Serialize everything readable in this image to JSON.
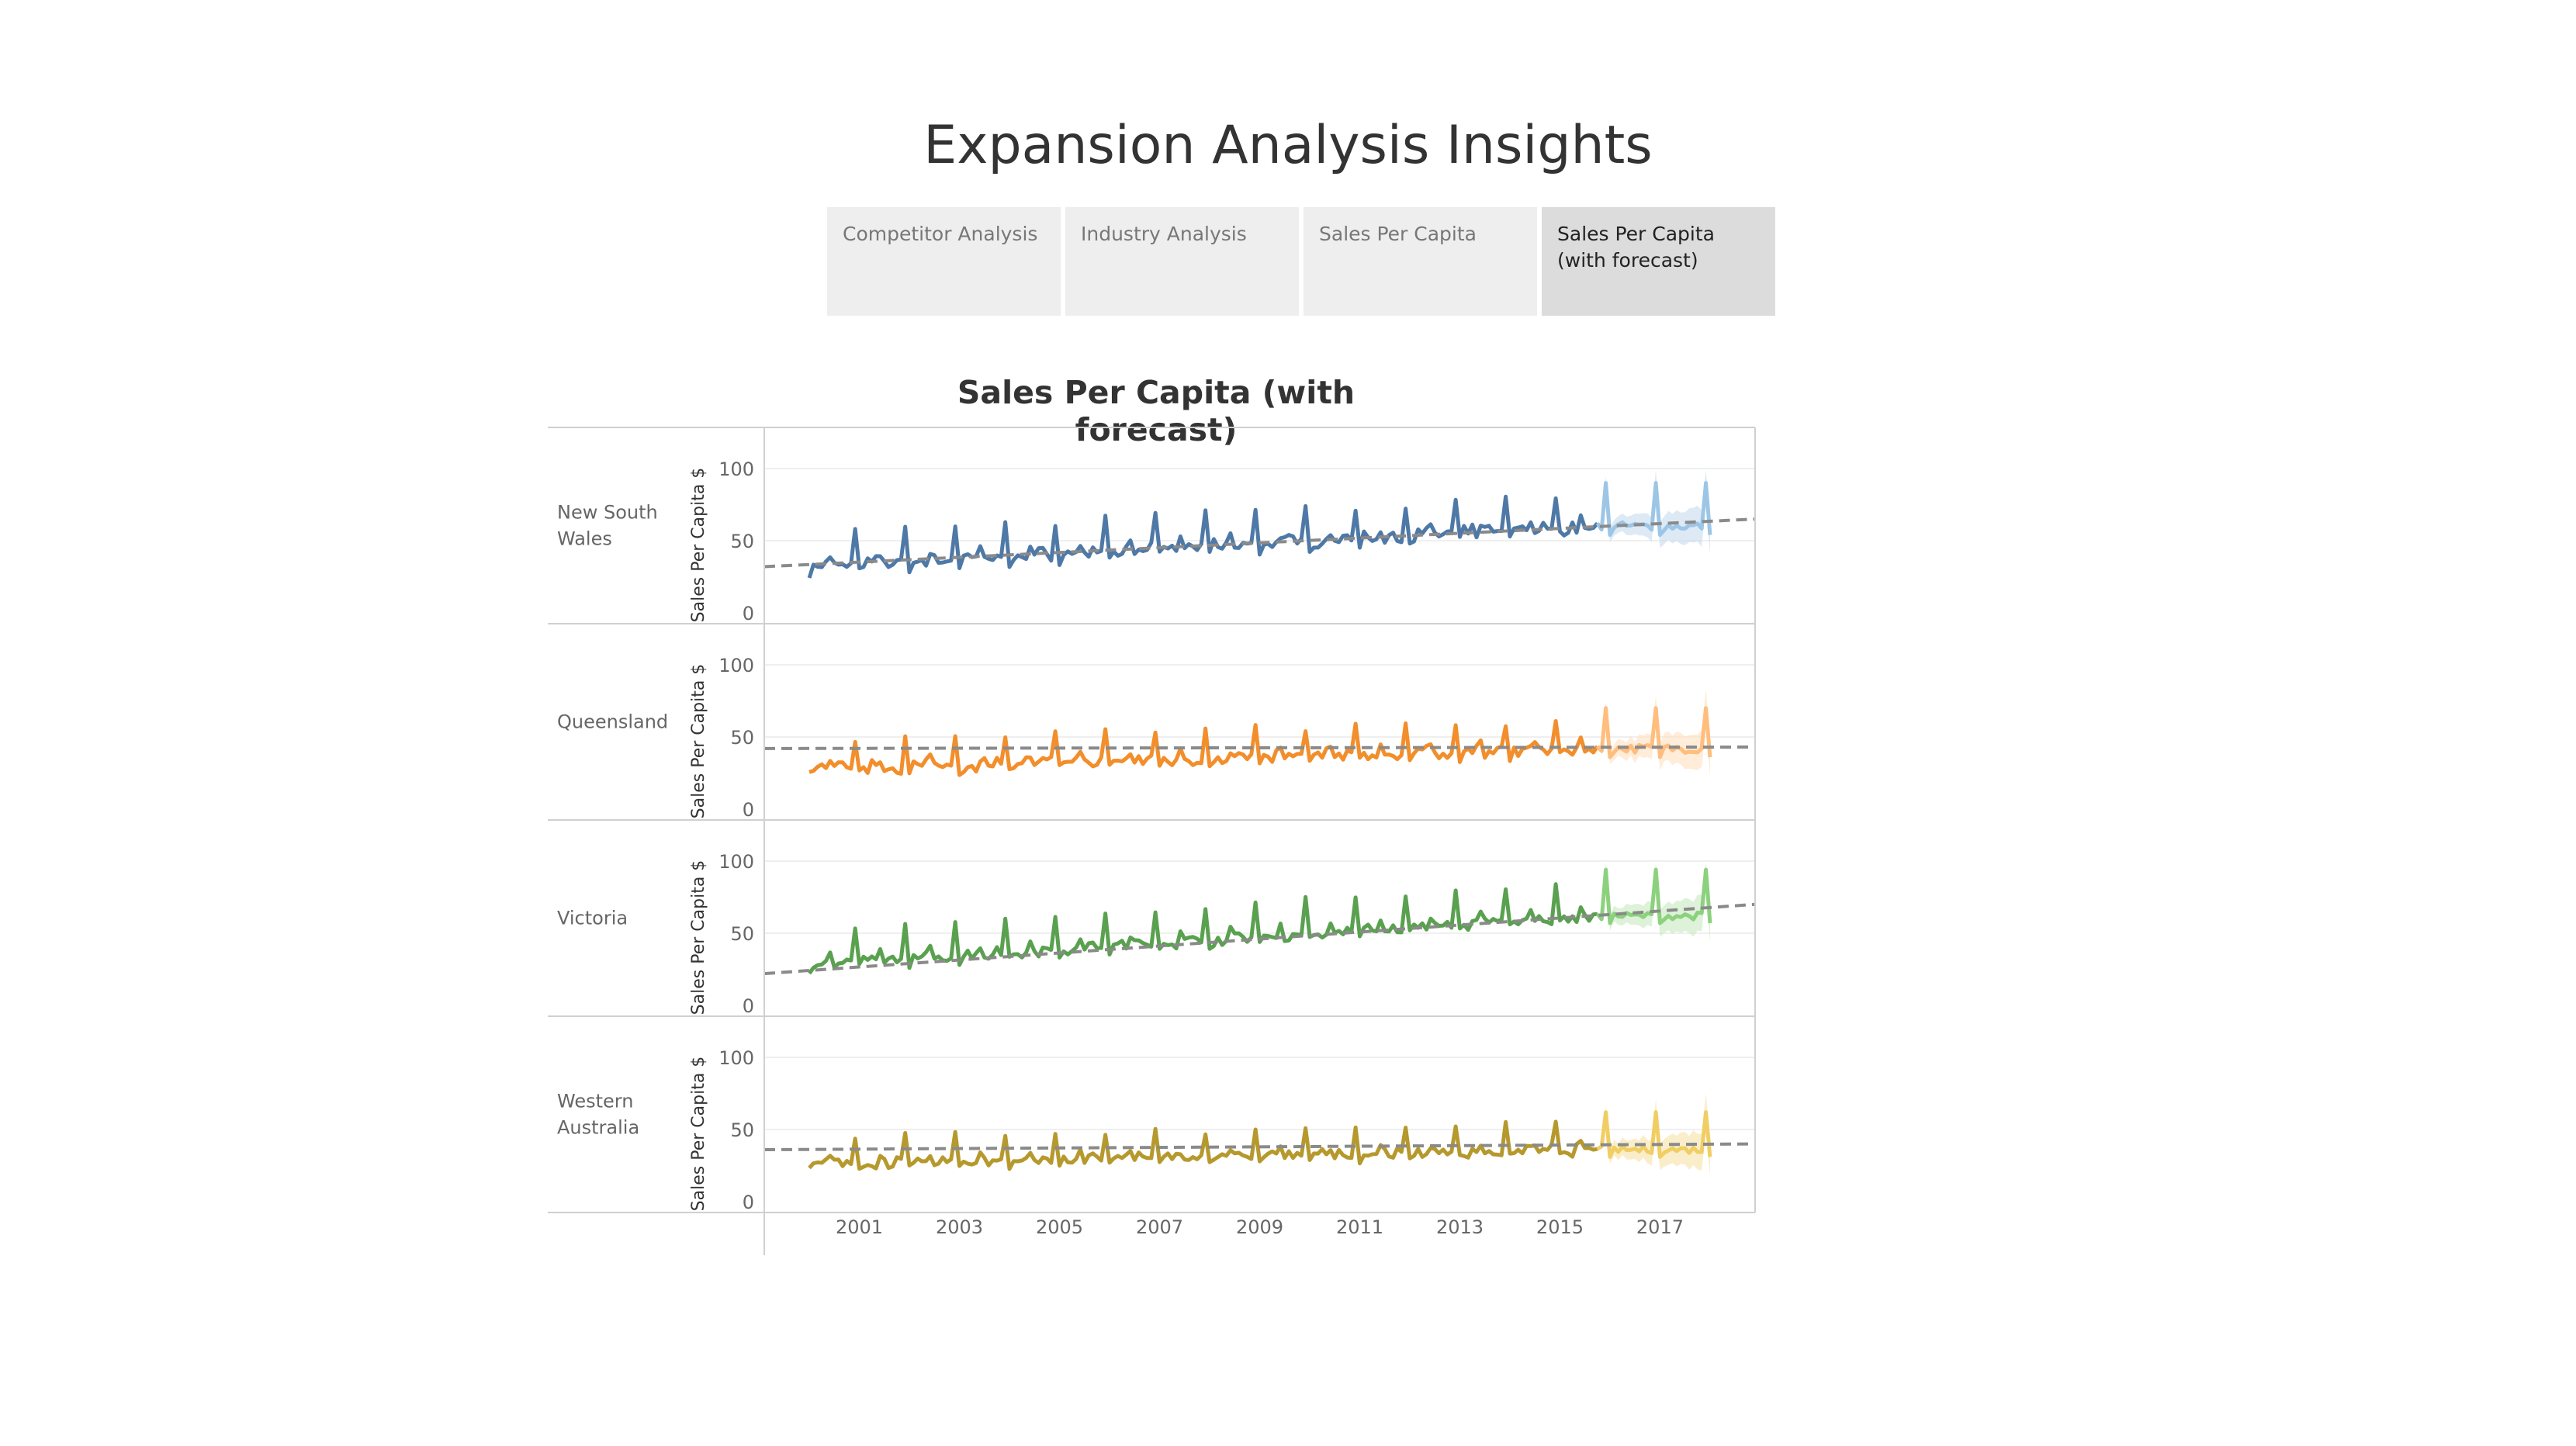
{
  "dashboard": {
    "title": "Expansion Analysis Insights"
  },
  "tabs": [
    {
      "label": "Competitor Analysis",
      "active": false
    },
    {
      "label": "Industry Analysis",
      "active": false
    },
    {
      "label": "Sales Per Capita",
      "active": false
    },
    {
      "label": "Sales Per Capita (with forecast)",
      "active": true
    }
  ],
  "chart_data": {
    "type": "line",
    "title": "Sales Per Capita (with forecast)",
    "ylabel": "Sales Per Capita $",
    "ylim": [
      0,
      100
    ],
    "yticks": [
      0,
      50,
      100
    ],
    "xlim": [
      1999.1,
      2018.9
    ],
    "xticks": [
      "2001",
      "2003",
      "2005",
      "2007",
      "2009",
      "2011",
      "2013",
      "2015",
      "2017"
    ],
    "x_start": 2000,
    "actual_end": 2015.75,
    "forecast_end": 2018,
    "trend_line": "dashed, grey",
    "grid": "horizontal at y ticks",
    "panels": [
      {
        "region": "New South Wales",
        "label_lines": [
          "New South",
          "Wales"
        ],
        "color": "#4e79a7",
        "forecast_color": "#9dc6e6",
        "band_color": "#c6dcef",
        "base_start": 32,
        "base_end": 60,
        "peak": 22,
        "jitter": 6,
        "trend": [
          32,
          65
        ]
      },
      {
        "region": "Queensland",
        "label_lines": [
          "Queensland"
        ],
        "color": "#f28e2b",
        "forecast_color": "#ffbe7d",
        "band_color": "#ffdfbf",
        "base_start": 28,
        "base_end": 42,
        "peak": 20,
        "jitter": 6,
        "trend": [
          42,
          43
        ]
      },
      {
        "region": "Victoria",
        "label_lines": [
          "Victoria"
        ],
        "color": "#59a14f",
        "forecast_color": "#8cd17d",
        "band_color": "#c7e9bf",
        "base_start": 28,
        "base_end": 62,
        "peak": 24,
        "jitter": 5,
        "trend": [
          22,
          70
        ]
      },
      {
        "region": "Western Australia",
        "label_lines": [
          "Western",
          "Australia"
        ],
        "color": "#b6992d",
        "forecast_color": "#f1ce63",
        "band_color": "#f7e3a6",
        "base_start": 26,
        "base_end": 36,
        "peak": 18,
        "jitter": 5,
        "trend": [
          36,
          40
        ]
      }
    ]
  }
}
